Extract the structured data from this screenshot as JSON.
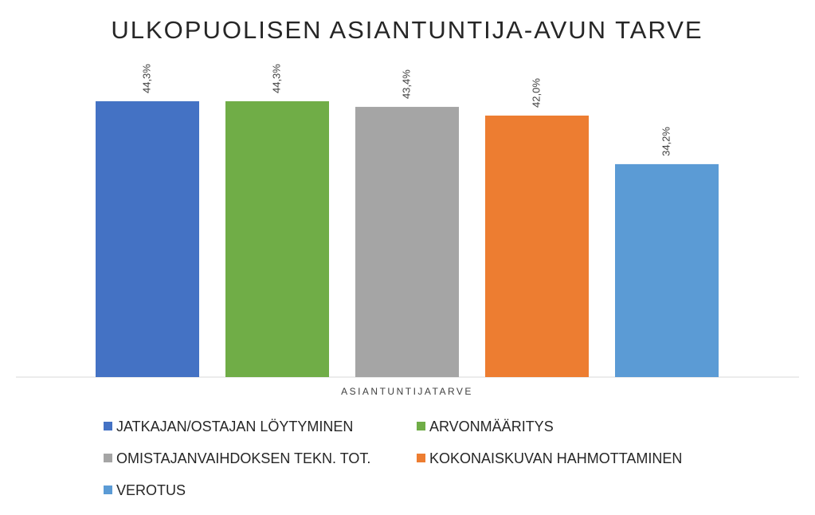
{
  "chart_data": {
    "type": "bar",
    "title": "ULKOPUOLISEN ASIANTUNTIJA-AVUN TARVE",
    "categories": [
      "ASIANTUNTIJATARVE"
    ],
    "ylim": [
      0,
      50
    ],
    "series": [
      {
        "name": "JATKAJAN/OSTAJAN LÖYTYMINEN",
        "color": "#4472c4",
        "values": [
          44.3
        ],
        "value_labels": [
          "44,3%"
        ]
      },
      {
        "name": "ARVONMÄÄRITYS",
        "color": "#70ad47",
        "values": [
          44.3
        ],
        "value_labels": [
          "44,3%"
        ]
      },
      {
        "name": "OMISTAJANVAIHDOKSEN TEKN. TOT.",
        "color": "#a5a5a5",
        "values": [
          43.4
        ],
        "value_labels": [
          "43,4%"
        ]
      },
      {
        "name": "KOKONAISKUVAN HAHMOTTAMINEN",
        "color": "#ed7d31",
        "values": [
          42.0
        ],
        "value_labels": [
          "42,0%"
        ]
      },
      {
        "name": "VEROTUS",
        "color": "#5b9bd5",
        "values": [
          34.2
        ],
        "value_labels": [
          "34,2%"
        ]
      }
    ]
  }
}
